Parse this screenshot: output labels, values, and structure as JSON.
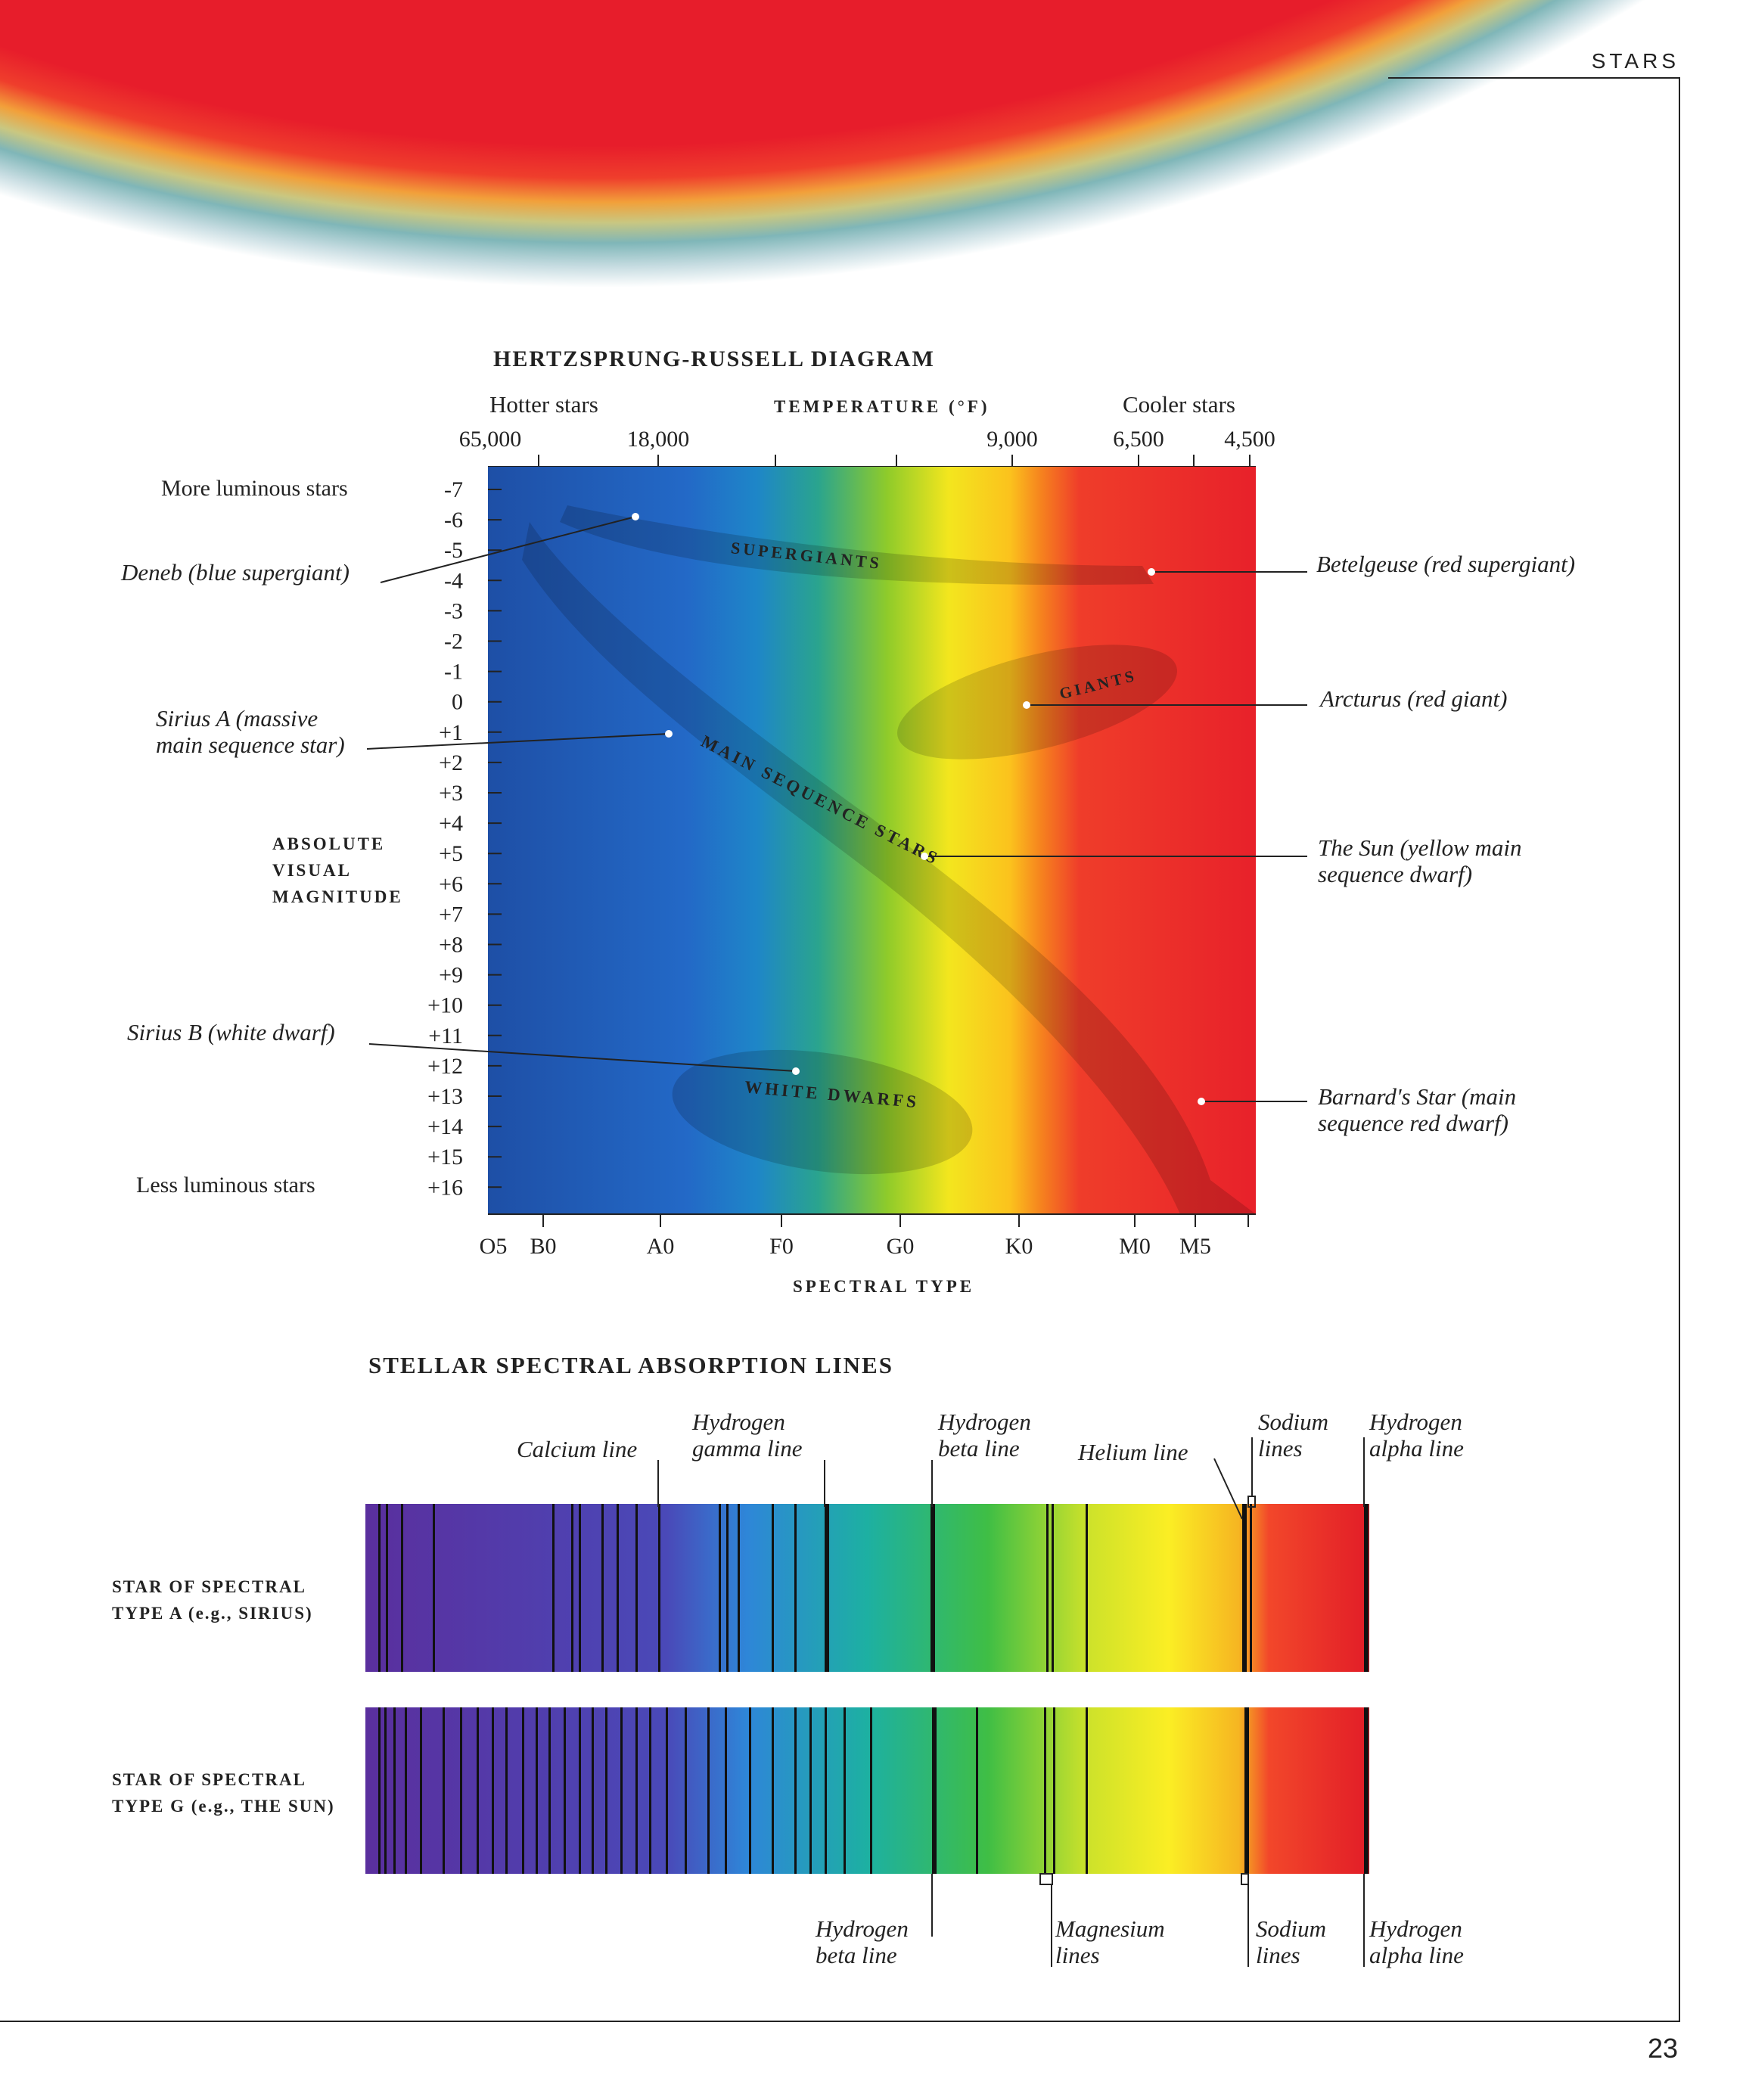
{
  "section_label": "STARS",
  "page_number": "23",
  "hr_diagram": {
    "title": "HERTZSPRUNG-RUSSELL DIAGRAM",
    "hotter_label": "Hotter stars",
    "temperature_label": "TEMPERATURE (°F)",
    "cooler_label": "Cooler stars",
    "temperature_ticks": [
      "65,000",
      "18,000",
      "9,000",
      "6,500",
      "4,500"
    ],
    "more_luminous_label": "More luminous stars",
    "less_luminous_label": "Less luminous stars",
    "magnitude_label_lines": [
      "ABSOLUTE",
      "VISUAL",
      "MAGNITUDE"
    ],
    "magnitude_ticks": [
      "-7",
      "-6",
      "-5",
      "-4",
      "-3",
      "-2",
      "-1",
      "0",
      "+1",
      "+2",
      "+3",
      "+4",
      "+5",
      "+6",
      "+7",
      "+8",
      "+9",
      "+10",
      "+11",
      "+12",
      "+13",
      "+14",
      "+15",
      "+16"
    ],
    "spectral_types": [
      "O5",
      "B0",
      "A0",
      "F0",
      "G0",
      "K0",
      "M0",
      "M5"
    ],
    "spectral_type_label": "SPECTRAL TYPE",
    "regions": {
      "supergiants": "SUPERGIANTS",
      "giants": "GIANTS",
      "main_sequence": "MAIN SEQUENCE STARS",
      "white_dwarfs": "WHITE DWARFS"
    },
    "stars": [
      {
        "id": "deneb",
        "lines": [
          "Deneb (blue supergiant)"
        ],
        "magnitude": -6.1
      },
      {
        "id": "sirius-a",
        "lines": [
          "Sirius A (massive",
          "main sequence star)"
        ],
        "magnitude": 1.4
      },
      {
        "id": "sirius-b",
        "lines": [
          "Sirius B (white dwarf)"
        ],
        "magnitude": 11.5
      },
      {
        "id": "betelgeuse",
        "lines": [
          "Betelgeuse (red supergiant)"
        ],
        "magnitude": -4.3
      },
      {
        "id": "arcturus",
        "lines": [
          "Arcturus (red giant)"
        ],
        "magnitude": 0.2
      },
      {
        "id": "sun",
        "lines": [
          "The Sun (yellow main",
          "sequence dwarf)"
        ],
        "magnitude": 5.1
      },
      {
        "id": "barnard",
        "lines": [
          "Barnard's Star (main",
          "sequence red dwarf)"
        ],
        "magnitude": 13.2
      }
    ]
  },
  "spectral_lines": {
    "title": "STELLAR SPECTRAL ABSORPTION LINES",
    "spectrum_a_label": [
      "STAR OF SPECTRAL",
      "TYPE A (e.g., SIRIUS)"
    ],
    "spectrum_g_label": [
      "STAR OF SPECTRAL",
      "TYPE G (e.g., THE SUN)"
    ],
    "top_labels": {
      "calcium": [
        "Calcium line"
      ],
      "h_gamma": [
        "Hydrogen",
        "gamma line"
      ],
      "h_beta": [
        "Hydrogen",
        "beta line"
      ],
      "helium": [
        "Helium line"
      ],
      "sodium": [
        "Sodium",
        "lines"
      ],
      "h_alpha": [
        "Hydrogen",
        "alpha line"
      ]
    },
    "bottom_labels": {
      "h_beta": [
        "Hydrogen",
        "beta line"
      ],
      "magnesium": [
        "Magnesium",
        "lines"
      ],
      "sodium": [
        "Sodium",
        "lines"
      ],
      "h_alpha": [
        "Hydrogen",
        "alpha line"
      ]
    }
  }
}
